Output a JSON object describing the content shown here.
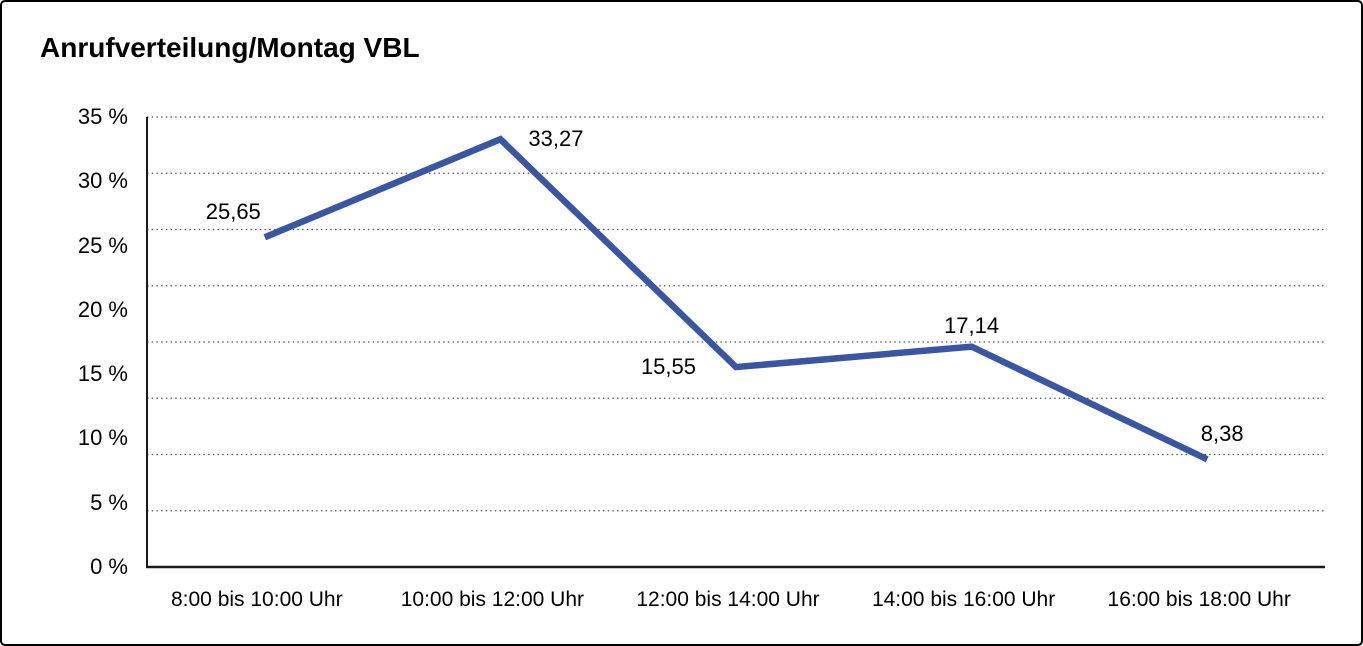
{
  "chart_data": {
    "type": "line",
    "title": "Anrufverteilung/Montag VBL",
    "categories": [
      "8:00 bis 10:00 Uhr",
      "10:00 bis 12:00 Uhr",
      "12:00 bis 14:00 Uhr",
      "14:00 bis 16:00 Uhr",
      "16:00 bis 18:00 Uhr"
    ],
    "values": [
      25.65,
      33.27,
      15.55,
      17.14,
      8.38
    ],
    "point_labels": [
      "25,65",
      "33,27",
      "15,55",
      "17,14",
      "8,38"
    ],
    "point_label_placements": [
      "left-above",
      "right",
      "left",
      "above",
      "above-right"
    ],
    "y_tick_labels": [
      "35 %",
      "30 %",
      "25 %",
      "20 %",
      "15 %",
      "10 %",
      "5 %",
      "0 %"
    ],
    "ylim": [
      0,
      35
    ],
    "y_tick_step": 5,
    "gridline_count": 8,
    "grid_style": "dotted-horizontal",
    "legend": "none",
    "xlabel": "",
    "ylabel": "",
    "colors": {
      "line": "#3A55A1",
      "gridline": "#555555",
      "axis": "#1a1a1a",
      "text": "#000000",
      "background": "#ffffff",
      "border": "#000000"
    }
  }
}
